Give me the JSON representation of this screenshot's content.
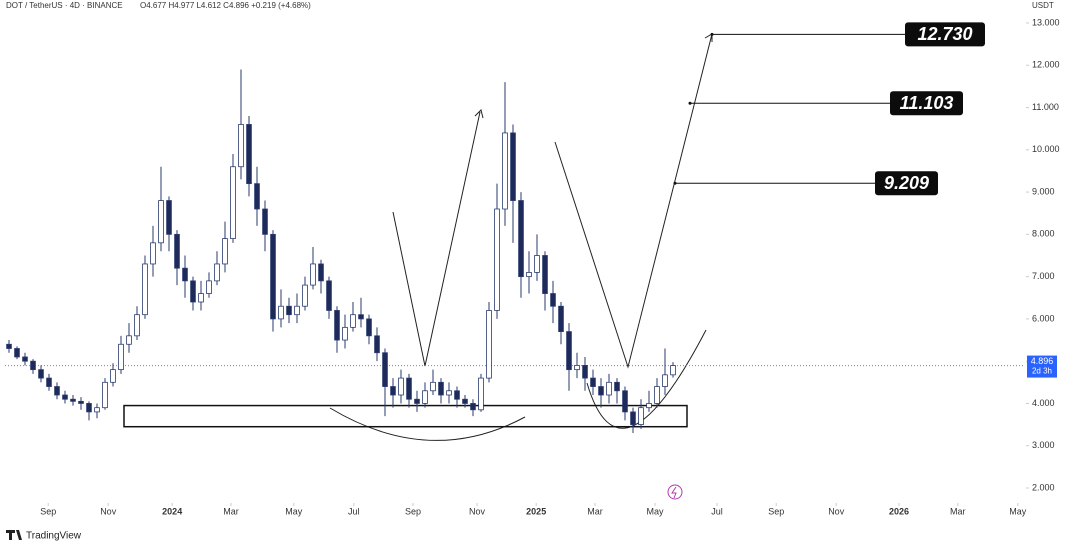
{
  "chart_data": {
    "type": "candlestick",
    "header": "DOT / TetherUS · 4D · BINANCE",
    "ohlc_text": "O4.677 H4.977 L4.612 C4.896 +0.219 (+4.68%)",
    "y_axis_title": "USDT",
    "footer": "TradingView",
    "countdown": "2d 3h",
    "last_price": 4.896,
    "up_color": "#ffffff",
    "down_color": "#1e2a5a",
    "outline_color": "#2a3a6e",
    "last_color": "#2962ff",
    "series": {
      "open": [
        5.4,
        5.3,
        5.1,
        5.0,
        4.8,
        4.6,
        4.4,
        4.2,
        4.1,
        4.05,
        4.0,
        3.8,
        3.9,
        4.5,
        4.8,
        5.4,
        5.6,
        6.1,
        7.3,
        7.8,
        8.8,
        8.0,
        7.2,
        6.9,
        6.4,
        6.6,
        6.9,
        7.3,
        7.9,
        9.6,
        10.6,
        9.2,
        8.6,
        8.0,
        6.0,
        6.3,
        6.1,
        6.3,
        6.8,
        7.3,
        6.9,
        6.2,
        5.5,
        5.8,
        6.1,
        6.0,
        5.6,
        5.2,
        4.4,
        4.2,
        4.6,
        4.1,
        4.0,
        4.3,
        4.5,
        4.2,
        4.3,
        4.1,
        4.0,
        3.85,
        4.6,
        6.2,
        8.6,
        10.4,
        8.8,
        7.0,
        7.1,
        7.5,
        6.6,
        6.3,
        5.7,
        4.8,
        4.9,
        4.6,
        4.4,
        4.2,
        4.5,
        4.3,
        3.8,
        3.5,
        3.9,
        4.0,
        4.4,
        4.677
      ],
      "high": [
        5.5,
        5.35,
        5.2,
        5.05,
        4.9,
        4.7,
        4.5,
        4.3,
        4.2,
        4.15,
        4.05,
        4.0,
        4.6,
        4.95,
        5.6,
        5.9,
        6.3,
        7.5,
        8.2,
        9.6,
        8.9,
        8.1,
        7.5,
        7.0,
        6.9,
        7.1,
        7.6,
        8.3,
        9.9,
        11.9,
        10.8,
        9.6,
        8.8,
        8.1,
        6.7,
        6.5,
        6.6,
        7.0,
        7.7,
        7.4,
        7.0,
        6.3,
        6.1,
        6.4,
        6.5,
        6.1,
        5.8,
        5.3,
        4.6,
        4.8,
        4.7,
        4.3,
        4.5,
        4.8,
        4.6,
        4.5,
        4.4,
        4.2,
        4.1,
        4.7,
        6.4,
        9.2,
        11.6,
        10.6,
        9.0,
        7.6,
        8.0,
        7.6,
        6.9,
        6.4,
        5.9,
        5.2,
        5.1,
        4.8,
        4.6,
        4.7,
        4.6,
        4.4,
        3.9,
        4.1,
        4.3,
        4.6,
        5.3,
        4.977
      ],
      "low": [
        5.2,
        5.05,
        4.9,
        4.7,
        4.5,
        4.3,
        4.1,
        4.0,
        3.95,
        3.85,
        3.6,
        3.65,
        3.85,
        4.4,
        4.7,
        5.2,
        5.5,
        6.0,
        7.0,
        7.6,
        7.6,
        6.8,
        6.5,
        6.2,
        6.2,
        6.5,
        6.8,
        7.1,
        7.8,
        9.3,
        8.9,
        8.2,
        7.6,
        5.7,
        5.8,
        5.9,
        5.9,
        6.2,
        6.7,
        6.6,
        6.0,
        5.2,
        5.3,
        5.7,
        5.8,
        5.4,
        5.0,
        3.7,
        3.9,
        4.0,
        3.9,
        3.8,
        3.9,
        4.2,
        4.0,
        4.0,
        3.9,
        3.9,
        3.7,
        3.8,
        4.5,
        6.0,
        8.2,
        7.8,
        6.5,
        6.6,
        6.9,
        6.2,
        5.9,
        5.4,
        4.3,
        4.6,
        4.3,
        4.2,
        3.9,
        4.0,
        4.0,
        3.6,
        3.3,
        3.4,
        3.8,
        3.9,
        4.2,
        4.612
      ],
      "close": [
        5.3,
        5.1,
        5.0,
        4.8,
        4.6,
        4.4,
        4.2,
        4.1,
        4.05,
        4.0,
        3.8,
        3.9,
        4.5,
        4.8,
        5.4,
        5.6,
        6.1,
        7.3,
        7.8,
        8.8,
        8.0,
        7.2,
        6.9,
        6.4,
        6.6,
        6.9,
        7.3,
        7.9,
        9.6,
        10.6,
        9.2,
        8.6,
        8.0,
        6.0,
        6.3,
        6.1,
        6.3,
        6.8,
        7.3,
        6.9,
        6.2,
        5.5,
        5.8,
        6.1,
        6.0,
        5.6,
        5.2,
        4.4,
        4.2,
        4.6,
        4.1,
        4.0,
        4.3,
        4.5,
        4.2,
        4.3,
        4.1,
        4.0,
        3.85,
        4.6,
        6.2,
        8.6,
        10.4,
        8.8,
        7.0,
        7.1,
        7.5,
        6.6,
        6.3,
        5.7,
        4.8,
        4.9,
        4.6,
        4.4,
        4.2,
        4.5,
        4.3,
        3.8,
        3.5,
        3.9,
        4.0,
        4.4,
        4.677,
        4.896
      ]
    },
    "targets": [
      {
        "value": 12.73,
        "label": "12.730"
      },
      {
        "value": 11.103,
        "label": "11.103"
      },
      {
        "value": 9.209,
        "label": "9.209"
      }
    ],
    "zone": [
      3.45,
      3.95
    ],
    "xlim": [
      0,
      127.5
    ],
    "xticks": [
      {
        "value": 5.4,
        "label": "Sep"
      },
      {
        "value": 12.9,
        "label": "Nov"
      },
      {
        "value": 20.9,
        "label": "2024"
      },
      {
        "value": 28.25,
        "label": "Mar"
      },
      {
        "value": 36.1,
        "label": "May"
      },
      {
        "value": 43.6,
        "label": "Jul"
      },
      {
        "value": 51,
        "label": "Sep"
      },
      {
        "value": 59,
        "label": "Nov"
      },
      {
        "value": 66.4,
        "label": "2025"
      },
      {
        "value": 73.75,
        "label": "Mar"
      },
      {
        "value": 81.25,
        "label": "May"
      },
      {
        "value": 89,
        "label": "Jul"
      },
      {
        "value": 96.4,
        "label": "Sep"
      },
      {
        "value": 103.9,
        "label": "Nov"
      },
      {
        "value": 111.75,
        "label": "2026"
      },
      {
        "value": 119.1,
        "label": "Mar"
      },
      {
        "value": 126.6,
        "label": "May"
      }
    ],
    "ylim": [
      2,
      13
    ],
    "yticks": [
      {
        "value": 2,
        "label": "2.000"
      },
      {
        "value": 3,
        "label": "3.000"
      },
      {
        "value": 4,
        "label": "4.000"
      },
      {
        "value": 5,
        "label": "5.000"
      },
      {
        "value": 6,
        "label": "6.000"
      },
      {
        "value": 7,
        "label": "7.000"
      },
      {
        "value": 8,
        "label": "8.000"
      },
      {
        "value": 9,
        "label": "9.000"
      },
      {
        "value": 10,
        "label": "10.000"
      },
      {
        "value": 11,
        "label": "11.000"
      },
      {
        "value": 12,
        "label": "12.000"
      },
      {
        "value": 13,
        "label": "13.000"
      }
    ]
  }
}
